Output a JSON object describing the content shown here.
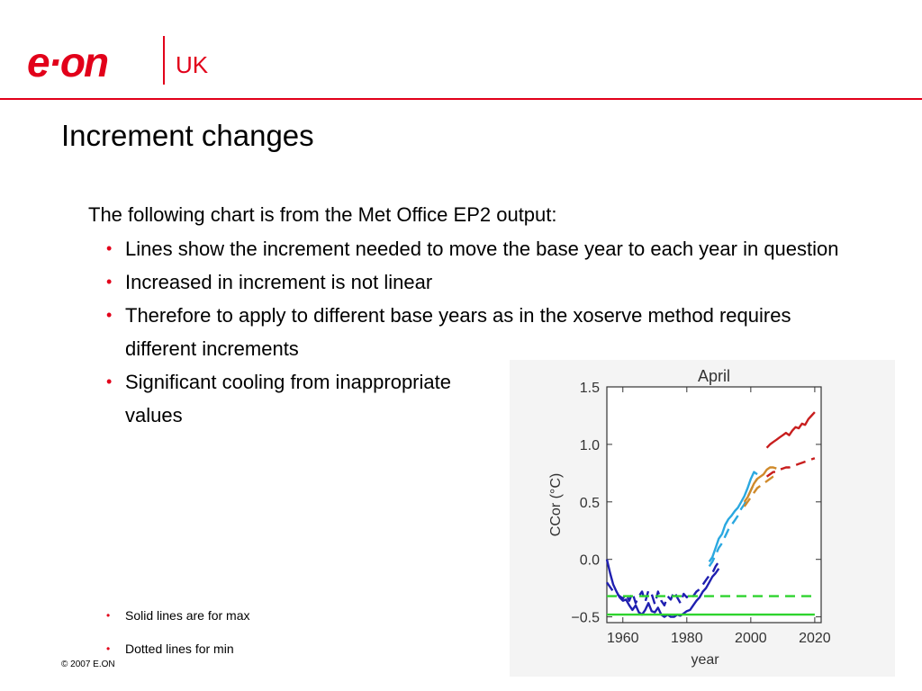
{
  "brand": {
    "wordmark": "e·on",
    "region": "UK",
    "accent": "#e2001a"
  },
  "slide": {
    "title": "Increment changes",
    "intro": "The following chart is from the Met Office EP2 output:",
    "bullets": [
      "Lines show the increment needed to move the base year to each year in question",
      "Increased in increment is not linear",
      "Therefore to apply to different base years as in the xoserve method requires different increments",
      "Significant cooling from inappropriate values"
    ],
    "notes": [
      "Solid lines are for max",
      "Dotted lines for min"
    ],
    "copyright": "© 2007 E.ON"
  },
  "chart_data": {
    "type": "line",
    "title": "April",
    "xlabel": "year",
    "ylabel": "CCor (°C)",
    "xlim": [
      1955,
      2022
    ],
    "ylim": [
      -0.55,
      1.5
    ],
    "xticks": [
      1960,
      1980,
      2000,
      2020
    ],
    "xtick_labels": [
      "1960",
      "1980",
      "2000",
      "2020"
    ],
    "yticks": [
      -0.5,
      0.0,
      0.5,
      1.0,
      1.5
    ],
    "ytick_labels": [
      "−0.5",
      "0.0",
      "0.5",
      "1.0",
      "1.5"
    ],
    "grid": false,
    "series": [
      {
        "color": "#1f1fb0",
        "dash": "solid",
        "x": [
          1955,
          1956,
          1957,
          1958,
          1959,
          1960,
          1961,
          1962,
          1963,
          1964,
          1965,
          1966,
          1967,
          1968,
          1969,
          1970,
          1971,
          1972,
          1973,
          1974,
          1975,
          1976,
          1977,
          1978,
          1979,
          1980,
          1981,
          1982,
          1983,
          1984,
          1985,
          1986,
          1987,
          1988,
          1989,
          1990
        ],
        "y": [
          0.0,
          -0.12,
          -0.22,
          -0.28,
          -0.33,
          -0.36,
          -0.35,
          -0.4,
          -0.44,
          -0.4,
          -0.46,
          -0.48,
          -0.44,
          -0.38,
          -0.45,
          -0.46,
          -0.42,
          -0.48,
          -0.5,
          -0.48,
          -0.5,
          -0.5,
          -0.48,
          -0.49,
          -0.47,
          -0.45,
          -0.44,
          -0.4,
          -0.36,
          -0.33,
          -0.28,
          -0.25,
          -0.2,
          -0.15,
          -0.12,
          -0.08
        ]
      },
      {
        "color": "#1f1fb0",
        "dash": "dashed",
        "x": [
          1955,
          1956,
          1957,
          1958,
          1959,
          1960,
          1961,
          1962,
          1963,
          1964,
          1965,
          1966,
          1967,
          1968,
          1969,
          1970,
          1971,
          1972,
          1973,
          1974,
          1975,
          1976,
          1977,
          1978,
          1979,
          1980,
          1981,
          1982,
          1983,
          1984,
          1985,
          1986,
          1987,
          1988,
          1989,
          1990
        ],
        "y": [
          -0.2,
          -0.24,
          -0.28,
          -0.3,
          -0.32,
          -0.34,
          -0.3,
          -0.36,
          -0.29,
          -0.38,
          -0.32,
          -0.28,
          -0.37,
          -0.27,
          -0.3,
          -0.39,
          -0.28,
          -0.36,
          -0.4,
          -0.32,
          -0.35,
          -0.28,
          -0.33,
          -0.38,
          -0.3,
          -0.33,
          -0.3,
          -0.32,
          -0.28,
          -0.26,
          -0.22,
          -0.18,
          -0.14,
          -0.12,
          -0.06,
          -0.02
        ]
      },
      {
        "color": "#2aa8e0",
        "dash": "solid",
        "x": [
          1987,
          1988,
          1989,
          1990,
          1991,
          1992,
          1993,
          1994,
          1995,
          1996,
          1997,
          1998,
          1999,
          2000,
          2001,
          2002
        ],
        "y": [
          -0.02,
          0.02,
          0.1,
          0.18,
          0.22,
          0.3,
          0.35,
          0.38,
          0.42,
          0.45,
          0.5,
          0.55,
          0.62,
          0.7,
          0.76,
          0.74
        ]
      },
      {
        "color": "#2aa8e0",
        "dash": "dashed",
        "x": [
          1987,
          1988,
          1989,
          1990,
          1991,
          1992,
          1993,
          1994,
          1995,
          1996,
          1997,
          1998,
          1999,
          2000,
          2001,
          2002
        ],
        "y": [
          -0.06,
          -0.02,
          0.04,
          0.1,
          0.14,
          0.2,
          0.26,
          0.3,
          0.34,
          0.38,
          0.44,
          0.48,
          0.54,
          0.6,
          0.66,
          0.7
        ]
      },
      {
        "color": "#d08a2a",
        "dash": "solid",
        "x": [
          1998,
          1999,
          2000,
          2001,
          2002,
          2003,
          2004,
          2005,
          2006,
          2007,
          2008
        ],
        "y": [
          0.5,
          0.54,
          0.6,
          0.66,
          0.7,
          0.72,
          0.74,
          0.78,
          0.8,
          0.8,
          0.79
        ]
      },
      {
        "color": "#d08a2a",
        "dash": "dashed",
        "x": [
          1998,
          1999,
          2000,
          2001,
          2002,
          2003,
          2004,
          2005,
          2006,
          2007,
          2008
        ],
        "y": [
          0.46,
          0.5,
          0.54,
          0.58,
          0.62,
          0.64,
          0.66,
          0.68,
          0.7,
          0.72,
          0.73
        ]
      },
      {
        "color": "#c81e1e",
        "dash": "solid",
        "x": [
          2005,
          2006,
          2007,
          2008,
          2009,
          2010,
          2011,
          2012,
          2013,
          2014,
          2015,
          2016,
          2017,
          2018,
          2019,
          2020
        ],
        "y": [
          0.97,
          1.0,
          1.02,
          1.04,
          1.06,
          1.08,
          1.1,
          1.08,
          1.12,
          1.15,
          1.14,
          1.18,
          1.17,
          1.22,
          1.25,
          1.28
        ]
      },
      {
        "color": "#c81e1e",
        "dash": "dashed",
        "x": [
          2005,
          2006,
          2007,
          2008,
          2009,
          2010,
          2011,
          2012,
          2013,
          2014,
          2015,
          2016,
          2017,
          2018,
          2019,
          2020
        ],
        "y": [
          0.72,
          0.74,
          0.76,
          0.76,
          0.78,
          0.79,
          0.8,
          0.8,
          0.81,
          0.82,
          0.83,
          0.84,
          0.85,
          0.86,
          0.87,
          0.88
        ]
      },
      {
        "color": "#2ed42e",
        "dash": "solid",
        "x": [
          1955,
          2020
        ],
        "y": [
          -0.48,
          -0.48
        ]
      },
      {
        "color": "#2ed42e",
        "dash": "dashed",
        "x": [
          1955,
          2020
        ],
        "y": [
          -0.32,
          -0.32
        ]
      }
    ]
  }
}
